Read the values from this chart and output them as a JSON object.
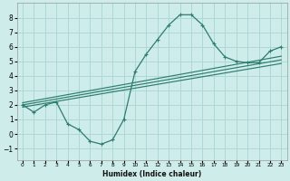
{
  "main_x": [
    0,
    1,
    2,
    3,
    4,
    5,
    6,
    7,
    8,
    9,
    10,
    11,
    12,
    13,
    14,
    15,
    16,
    17,
    18,
    19,
    20,
    21,
    22,
    23
  ],
  "main_y": [
    2.0,
    1.5,
    2.0,
    2.2,
    0.7,
    0.3,
    -0.5,
    -0.7,
    -0.4,
    1.0,
    4.3,
    5.5,
    6.5,
    7.5,
    8.2,
    8.2,
    7.5,
    6.2,
    5.3,
    5.0,
    4.9,
    4.9,
    5.7,
    6.0
  ],
  "reg_lines": [
    {
      "x": [
        0,
        23
      ],
      "y": [
        1.85,
        4.85
      ]
    },
    {
      "x": [
        0,
        23
      ],
      "y": [
        2.0,
        5.1
      ]
    },
    {
      "x": [
        0,
        23
      ],
      "y": [
        2.15,
        5.35
      ]
    }
  ],
  "line_color": "#2e7d6e",
  "bg_color": "#cdecea",
  "grid_color": "#aed8d4",
  "xlabel": "Humidex (Indice chaleur)",
  "xlim": [
    -0.5,
    23.5
  ],
  "ylim": [
    -1.8,
    9.0
  ],
  "yticks": [
    -1,
    0,
    1,
    2,
    3,
    4,
    5,
    6,
    7,
    8
  ],
  "xticks": [
    0,
    1,
    2,
    3,
    4,
    5,
    6,
    7,
    8,
    9,
    10,
    11,
    12,
    13,
    14,
    15,
    16,
    17,
    18,
    19,
    20,
    21,
    22,
    23
  ]
}
